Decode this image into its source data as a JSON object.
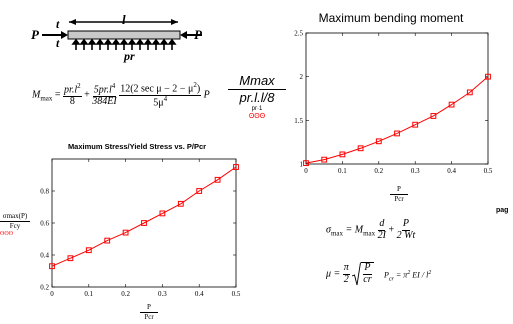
{
  "beam": {
    "load_left": "P",
    "load_right": "P",
    "t_top": "t",
    "t_bottom": "t",
    "span": "l",
    "dist_load": "pr"
  },
  "formula_mmax": {
    "lhs": "M",
    "lhs_sub": "max",
    "eq": "=",
    "t1_num": "pr.l",
    "t1_num_sup": "2",
    "t1_den": "8",
    "plus": "+",
    "t2_num_a": "5pr.l",
    "t2_num_sup": "4",
    "t2_den": "384EI",
    "t3_num": "12(2 sec μ − 2 − μ",
    "t3_num_sup": "2",
    "t3_num_close": ")",
    "t3_den": "5μ",
    "t3_den_sup": "4",
    "trail": "P"
  },
  "ratio_legend": {
    "label_top": "Mmax",
    "label_bottom": "pr.l.l/8",
    "sub": "pr·1",
    "marker": "ʘʘʘ"
  },
  "chart_left_meta": {
    "ylabel_top": "σmax(P)",
    "ylabel_bottom": "Fcy",
    "ylabel_marker": "ʘʘʘ",
    "xlabel_top": "P",
    "xlabel_bottom": "Pcr"
  },
  "chart_right_meta": {
    "xlabel_top": "P",
    "xlabel_bottom": "Pcr"
  },
  "formula_sigma": {
    "lhs": "σ",
    "lhs_sub": "max",
    "eq": "= M",
    "m_sub": "max",
    "f1_num": "d",
    "f1_den": "2I",
    "plus": "+",
    "f2_num": "P",
    "f2_den": "2 Wt"
  },
  "formula_mu": {
    "lhs": "μ =",
    "f_num": "π",
    "f_den": "2",
    "sqrt_num": "P",
    "sqrt_den": "cr"
  },
  "formula_pcr": {
    "lhs": "P",
    "lhs_sub": "cr",
    "rhs": "= π",
    "rhs_sup": "2",
    "rhs2": "EI / l",
    "rhs2_sup": "2"
  },
  "page_fragment": "pag",
  "chart_data": [
    {
      "type": "line",
      "title": "Maximum Stress/Yield Stress vs. P/Pcr",
      "xlabel": "P / Pcr",
      "ylabel": "σmax(P) / Fcy",
      "xlim": [
        0,
        0.5
      ],
      "ylim": [
        0.2,
        1.0
      ],
      "xticks": [
        "0",
        "0.1",
        "0.2",
        "0.3",
        "0.4",
        "0.5"
      ],
      "yticks": [
        "0.2",
        "0.4",
        "0.6",
        "0.8"
      ],
      "grid": false,
      "series": [
        {
          "color": "#ff0000",
          "marker": "square",
          "x": [
            0,
            0.05,
            0.1,
            0.15,
            0.2,
            0.25,
            0.3,
            0.35,
            0.4,
            0.45,
            0.5
          ],
          "y": [
            0.33,
            0.38,
            0.43,
            0.49,
            0.54,
            0.6,
            0.66,
            0.72,
            0.8,
            0.87,
            0.95
          ]
        }
      ]
    },
    {
      "type": "line",
      "title": "Maximum bending moment",
      "xlabel": "P / Pcr",
      "ylabel": "",
      "xlim": [
        0,
        0.5
      ],
      "ylim": [
        1,
        2.5
      ],
      "xticks": [
        "0",
        "0.1",
        "0.2",
        "0.3",
        "0.4",
        "0.5"
      ],
      "yticks": [
        "1",
        "1.5",
        "2",
        "2.5"
      ],
      "grid": false,
      "series": [
        {
          "color": "#ff0000",
          "marker": "square",
          "x": [
            0,
            0.05,
            0.1,
            0.15,
            0.2,
            0.25,
            0.3,
            0.35,
            0.4,
            0.45,
            0.5
          ],
          "y": [
            1.01,
            1.05,
            1.11,
            1.18,
            1.26,
            1.35,
            1.45,
            1.55,
            1.68,
            1.82,
            2.0
          ]
        }
      ]
    }
  ]
}
